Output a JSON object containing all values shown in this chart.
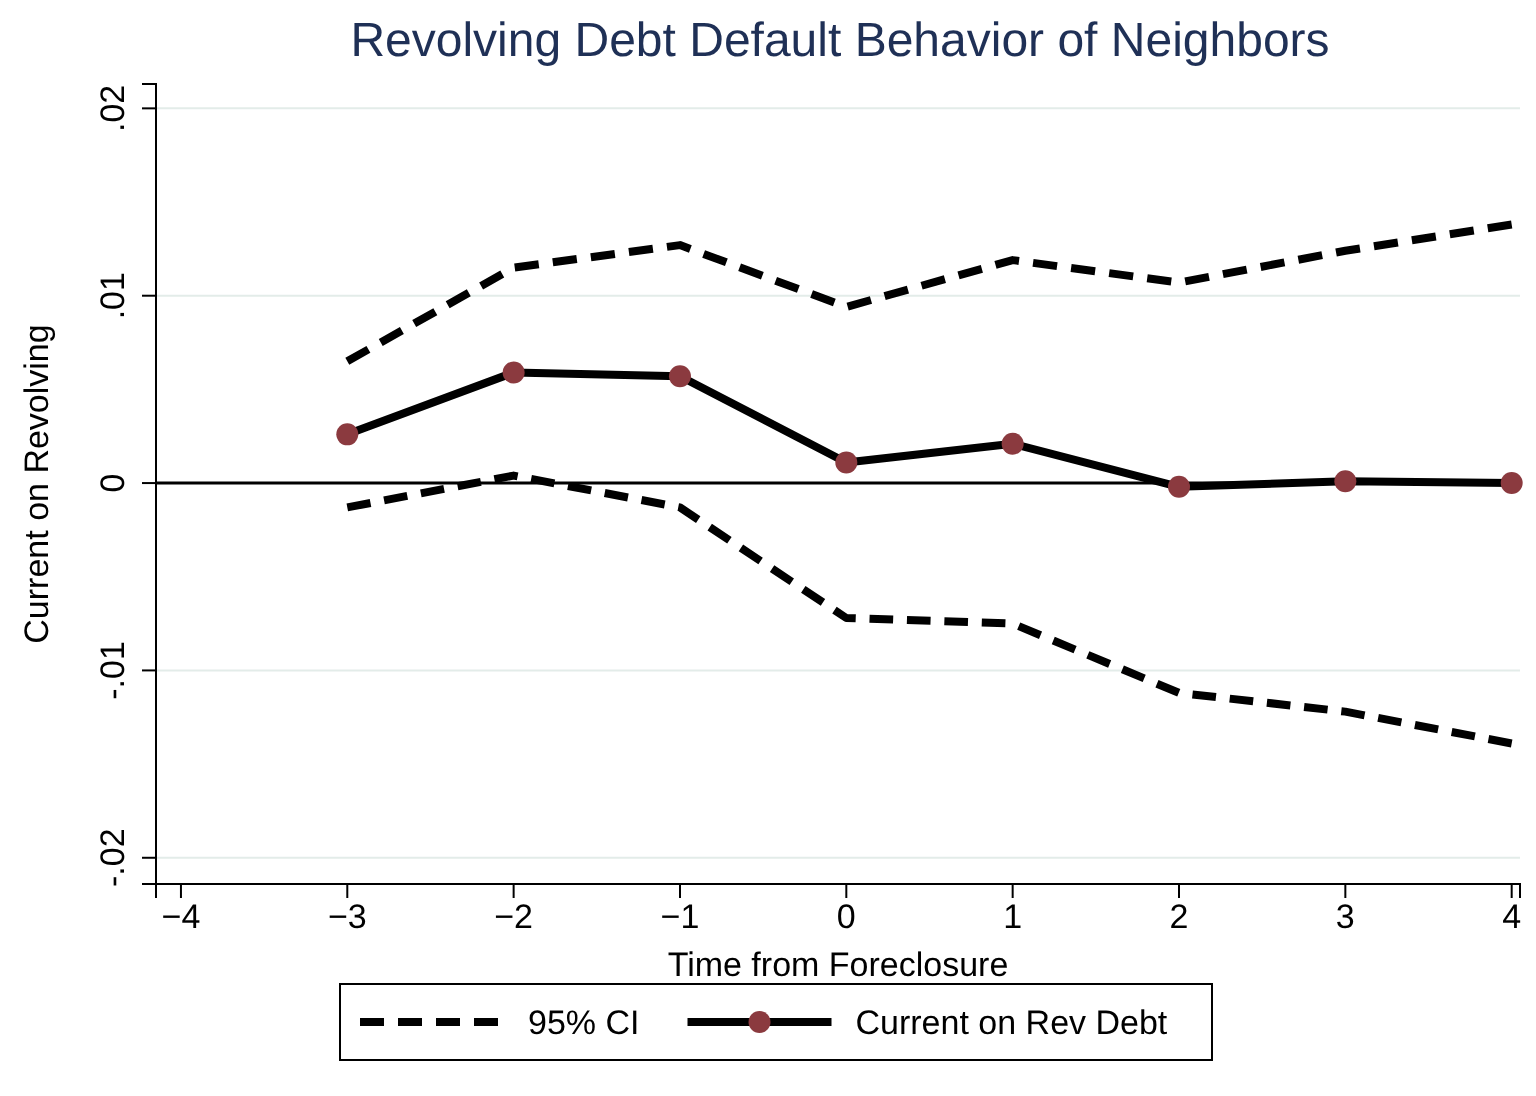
{
  "chart_data": {
    "type": "line",
    "title": "Revolving Debt Default Behavior of Neighbors",
    "xlabel": "Time from Foreclosure",
    "ylabel": "Current on Revolving",
    "x": [
      -3,
      -2,
      -1,
      0,
      1,
      2,
      3,
      4
    ],
    "series": [
      {
        "name": "95% CI",
        "color": "#000000",
        "line_style": "dashed",
        "marker": "none",
        "values": [
          0.0065,
          0.0115,
          0.0127,
          0.0094,
          0.0119,
          0.0107,
          0.0124,
          0.0138
        ]
      },
      {
        "color": "#000000",
        "line_style": "dashed",
        "marker": "none",
        "values": [
          -0.0013,
          0.0004,
          -0.0013,
          -0.0072,
          -0.0075,
          -0.0112,
          -0.0122,
          -0.0139
        ]
      },
      {
        "name": "Current on Rev Debt",
        "color": "#000000",
        "line_style": "solid",
        "marker": "circle",
        "values": [
          0.0026,
          0.0059,
          0.0057,
          0.0011,
          0.0021,
          -0.0002,
          0.0001,
          0
        ]
      }
    ],
    "xlim": [
      -4.15,
      4.05
    ],
    "ylim": [
      -0.0214,
      0.0213
    ],
    "xticks": [
      {
        "value": -4,
        "label": "−4"
      },
      {
        "value": -3,
        "label": "−3"
      },
      {
        "value": -2,
        "label": "−2"
      },
      {
        "value": -1,
        "label": "−1"
      },
      0,
      1,
      2,
      3,
      4
    ],
    "yticks": [
      {
        "value": -0.02,
        "label": "-.02"
      },
      {
        "value": -0.01,
        "label": "-.01"
      },
      0,
      {
        "value": 0.01,
        "label": ".01"
      },
      {
        "value": 0.02,
        "label": ".02"
      }
    ],
    "ref_lines": [
      {
        "axis": "y",
        "value": 0,
        "color": "#000000"
      }
    ],
    "grid": "y",
    "legend": "bottom"
  }
}
